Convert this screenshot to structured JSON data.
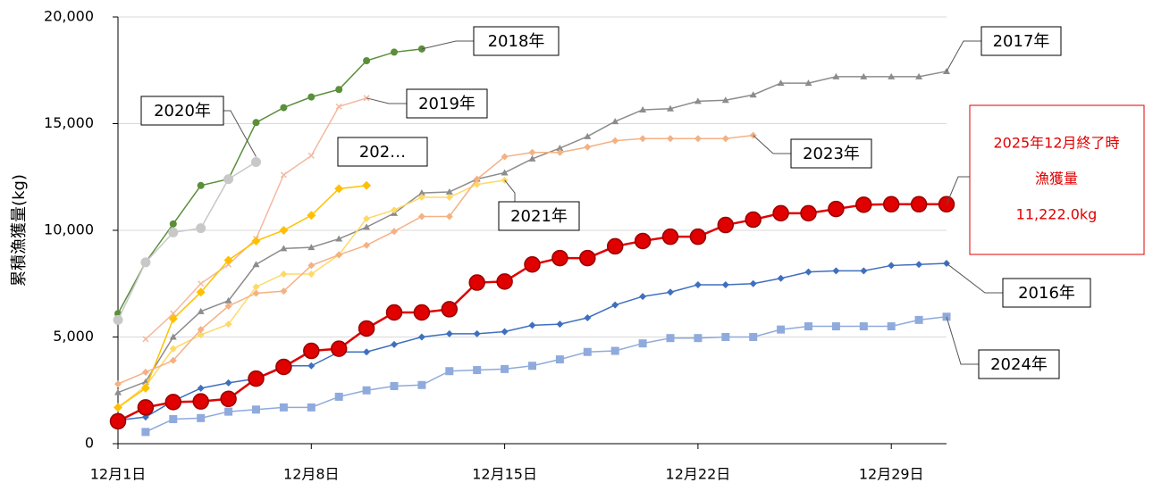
{
  "chart_data": {
    "type": "line",
    "ylabel": "累積漁獲量(kg)",
    "x": [
      1,
      2,
      3,
      4,
      5,
      6,
      7,
      8,
      9,
      10,
      11,
      12,
      13,
      14,
      15,
      16,
      17,
      18,
      19,
      20,
      21,
      22,
      23,
      24,
      25,
      26,
      27,
      28,
      29,
      30,
      31
    ],
    "xlim": [
      1,
      31
    ],
    "xticks": [
      {
        "value": 1,
        "label": "12月1日"
      },
      {
        "value": 8,
        "label": "12月8日"
      },
      {
        "value": 15,
        "label": "12月15日"
      },
      {
        "value": 22,
        "label": "12月22日"
      },
      {
        "value": 29,
        "label": "12月29日"
      }
    ],
    "ylim": [
      0,
      20000
    ],
    "yticks": [
      0,
      {
        "value": 5000,
        "label": "5,000"
      },
      {
        "value": 10000,
        "label": "10,000"
      },
      {
        "value": 15000,
        "label": "15,000"
      },
      {
        "value": 20000,
        "label": "20,000"
      }
    ],
    "grid": true,
    "series": [
      {
        "name": "2016年",
        "color": "#3f6fbf",
        "marker": "diamond",
        "values": [
          1100,
          1250,
          2000,
          2600,
          2850,
          3050,
          3650,
          3650,
          4300,
          4300,
          4650,
          5000,
          5150,
          5150,
          5250,
          5550,
          5600,
          5900,
          6500,
          6900,
          7100,
          7450,
          7450,
          7500,
          7750,
          8050,
          8100,
          8100,
          8350,
          8400,
          8450
        ]
      },
      {
        "name": "2017年",
        "color": "#8c8c8c",
        "marker": "triangle",
        "values": [
          2400,
          2900,
          5000,
          6200,
          6700,
          8400,
          9150,
          9200,
          9600,
          10150,
          10800,
          11750,
          11800,
          12400,
          12700,
          13350,
          13850,
          14400,
          15100,
          15650,
          15700,
          16050,
          16100,
          16350,
          16900,
          16900,
          17200,
          17200,
          17200,
          17200,
          17450
        ]
      },
      {
        "name": "2018年",
        "color": "#5b8f3a",
        "marker": "circle",
        "values": [
          6100,
          8500,
          10300,
          12100,
          12400,
          15050,
          15750,
          16250,
          16600,
          17950,
          18350,
          18500,
          null,
          null,
          null,
          null,
          null,
          null,
          null,
          null,
          null,
          null,
          null,
          null,
          null,
          null,
          null,
          null,
          null,
          null,
          null
        ]
      },
      {
        "name": "2019年",
        "color": "#f4b8a0",
        "marker": "x",
        "values": [
          null,
          4900,
          6100,
          7500,
          8400,
          9600,
          12600,
          13500,
          15800,
          16200,
          null,
          null,
          null,
          null,
          null,
          null,
          null,
          null,
          null,
          null,
          null,
          null,
          null,
          null,
          null,
          null,
          null,
          null,
          null,
          null,
          null
        ]
      },
      {
        "name": "2020年",
        "color": "#c8c8c8",
        "marker": "circle",
        "values": [
          5800,
          8500,
          9900,
          10100,
          12400,
          13200,
          null,
          null,
          null,
          null,
          null,
          null,
          null,
          null,
          null,
          null,
          null,
          null,
          null,
          null,
          null,
          null,
          null,
          null,
          null,
          null,
          null,
          null,
          null,
          null,
          null
        ]
      },
      {
        "name": "2021年",
        "color": "#ffd966",
        "marker": "diamond",
        "values": [
          1700,
          2700,
          4450,
          5100,
          5600,
          7350,
          7950,
          7950,
          8850,
          10550,
          10950,
          11550,
          11550,
          12150,
          12350,
          null,
          null,
          null,
          null,
          null,
          null,
          null,
          null,
          null,
          null,
          null,
          null,
          null,
          null,
          null,
          null
        ]
      },
      {
        "name": "202…",
        "color": "#ffc000",
        "marker": "diamond",
        "values": [
          1700,
          2600,
          5850,
          7100,
          8600,
          9500,
          10000,
          10700,
          11950,
          12100,
          null,
          null,
          null,
          null,
          null,
          null,
          null,
          null,
          null,
          null,
          null,
          null,
          null,
          null,
          null,
          null,
          null,
          null,
          null,
          null,
          null
        ]
      },
      {
        "name": "2023年",
        "color": "#f4b183",
        "marker": "diamond",
        "values": [
          2800,
          3350,
          3900,
          5350,
          6450,
          7050,
          7150,
          8350,
          8850,
          9300,
          9950,
          10650,
          10650,
          12400,
          13450,
          13650,
          13650,
          13900,
          14200,
          14300,
          14300,
          14300,
          14300,
          14450,
          null,
          null,
          null,
          null,
          null,
          null,
          null
        ]
      },
      {
        "name": "2024年",
        "color": "#8faadc",
        "marker": "square",
        "values": [
          null,
          550,
          1150,
          1200,
          1500,
          1600,
          1700,
          1700,
          2200,
          2500,
          2700,
          2750,
          3400,
          3450,
          3500,
          3650,
          3950,
          4300,
          4350,
          4700,
          4950,
          4950,
          5000,
          5000,
          5350,
          5500,
          5500,
          5500,
          5500,
          5800,
          5950
        ]
      },
      {
        "color": "#e00000",
        "marker": "circle",
        "values": [
          1050,
          1700,
          1950,
          1980,
          2100,
          3050,
          3600,
          4350,
          4450,
          5400,
          6150,
          6150,
          6300,
          7550,
          7600,
          8400,
          8700,
          8700,
          9250,
          9500,
          9700,
          9700,
          10250,
          10500,
          10800,
          10800,
          11000,
          11200,
          11222,
          11222,
          11222
        ]
      }
    ],
    "annotation": [
      "2025年12月終了時",
      "漁獲量",
      "11,222.0kg"
    ]
  }
}
